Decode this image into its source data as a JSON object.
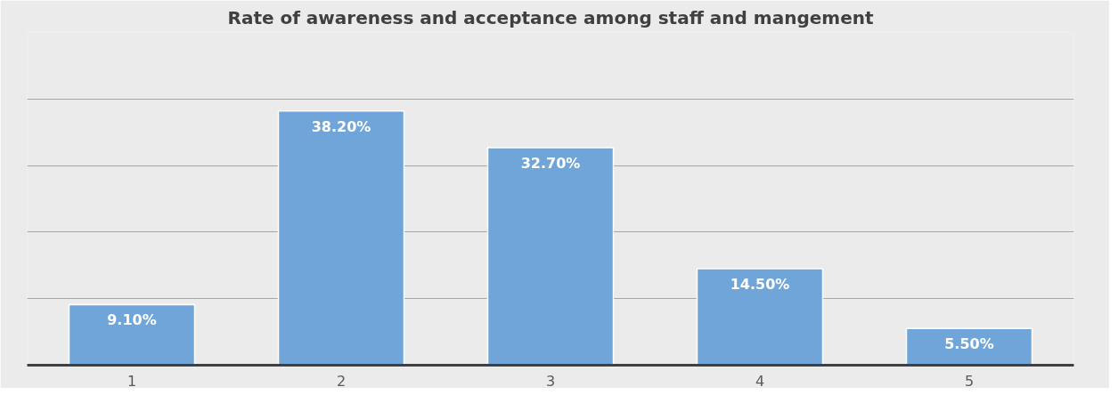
{
  "chart_data": {
    "type": "bar",
    "title": "Rate of awareness and acceptance among staff and mangement",
    "categories": [
      "1",
      "2",
      "3",
      "4",
      "5"
    ],
    "values": [
      9.1,
      38.2,
      32.7,
      14.5,
      5.5
    ],
    "value_labels": [
      "9.10%",
      "38.20%",
      "32.70%",
      "14.50%",
      "5.50%"
    ],
    "color": "#6fa5d9",
    "ylim": [
      0,
      50
    ],
    "yticks": [
      {
        "value": 0,
        "label": null
      },
      {
        "value": 10,
        "label": null
      },
      {
        "value": 20,
        "label": null
      },
      {
        "value": 30,
        "label": null
      },
      {
        "value": 40,
        "label": null
      },
      {
        "value": 50,
        "label": null
      }
    ],
    "tick_labels": "x",
    "grid": "y"
  }
}
